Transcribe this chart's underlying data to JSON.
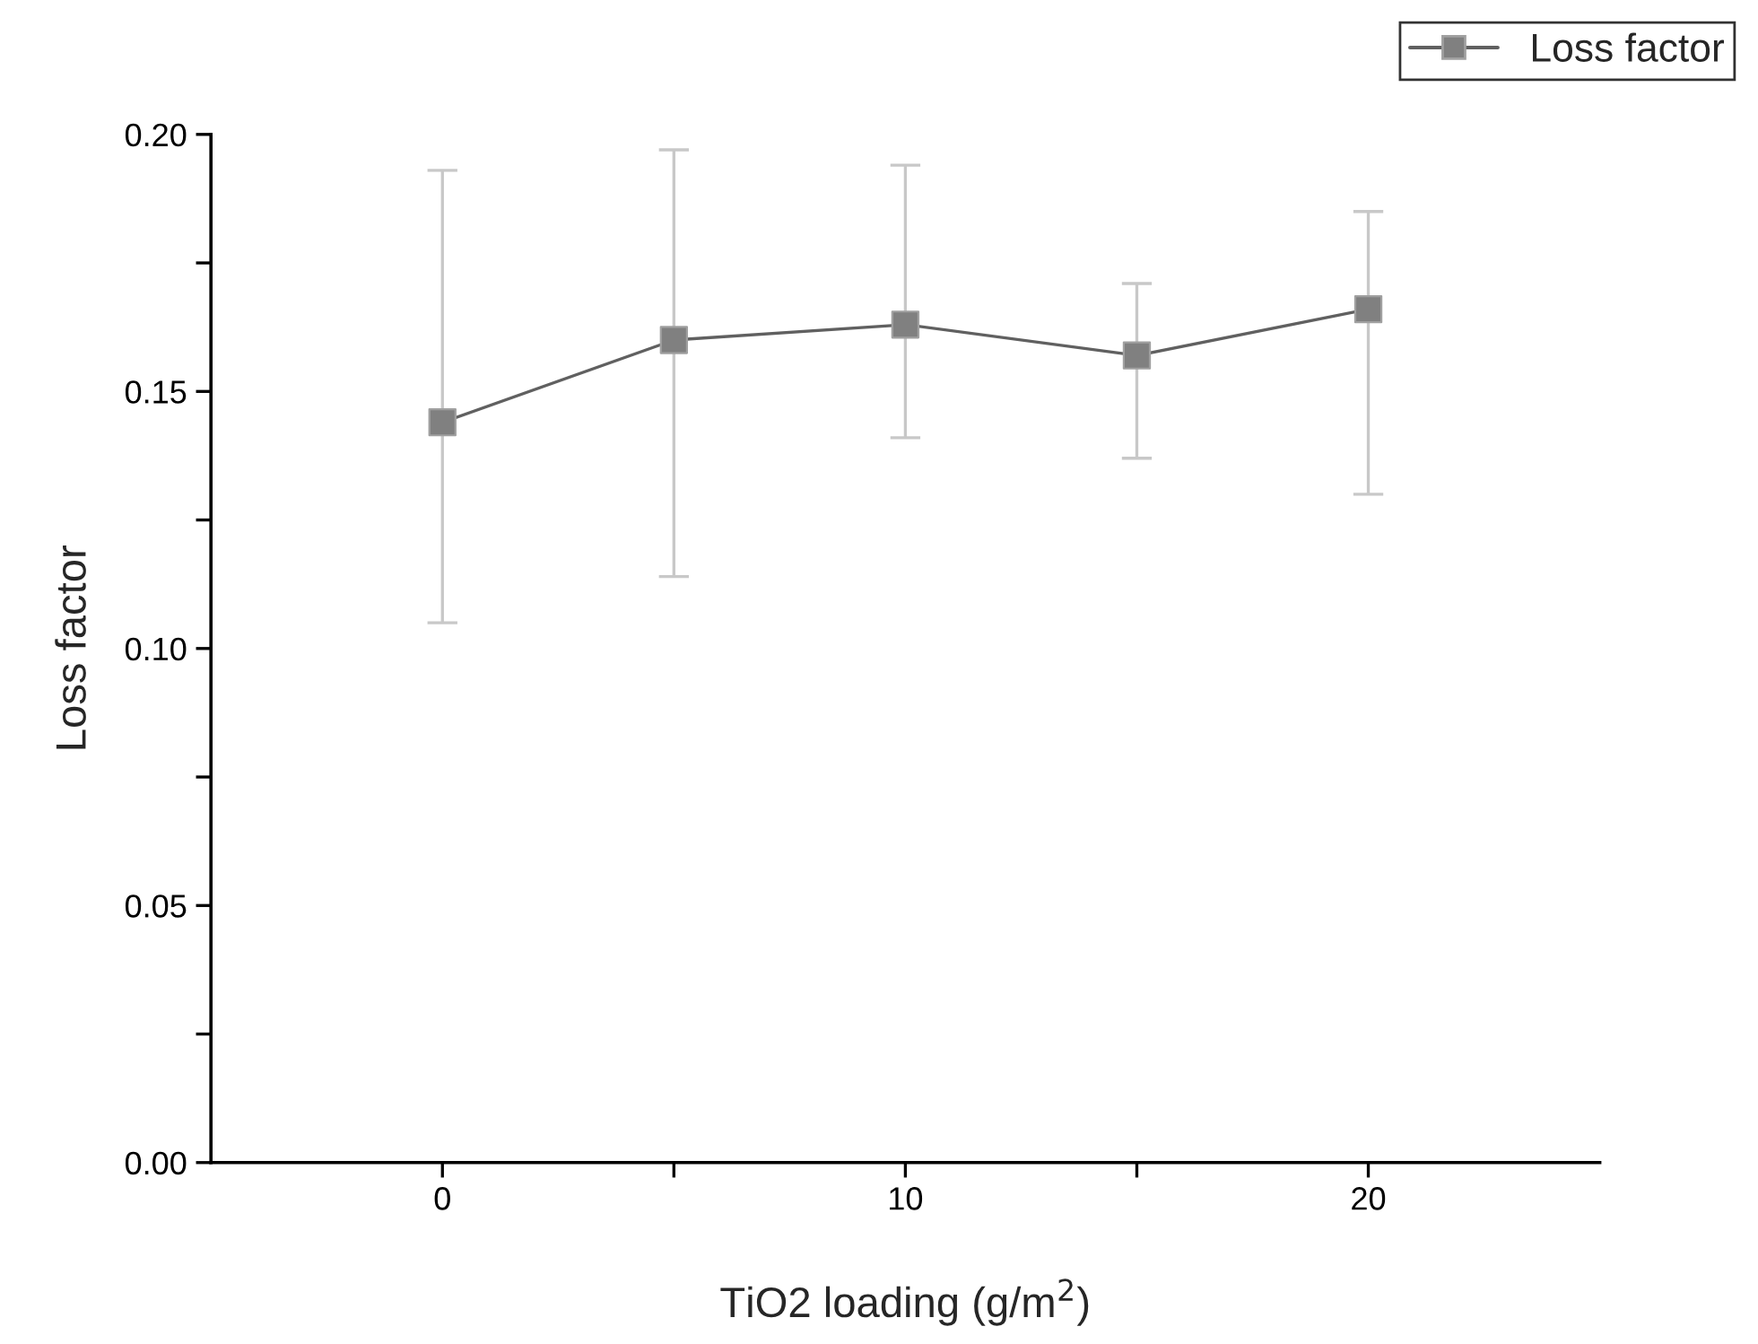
{
  "chart_data": {
    "type": "line",
    "xlabel": "TiO2 loading (g/m$^{2}$)",
    "ylabel": "Loss factor",
    "x": [
      0,
      5,
      10,
      15,
      20
    ],
    "series": [
      {
        "name": "Loss factor",
        "color": "#808080",
        "marker": "square",
        "line_style": "solid",
        "values": [
          0.144,
          0.16,
          0.163,
          0.157,
          0.166
        ],
        "errors": [
          [
            0.105,
            0.193
          ],
          [
            0.114,
            0.197
          ],
          [
            0.141,
            0.194
          ],
          [
            0.137,
            0.171
          ],
          [
            0.13,
            0.185
          ]
        ]
      }
    ],
    "xlim": [
      -5,
      25
    ],
    "xticks": [
      0,
      {
        "value": 5,
        "label": null
      },
      10,
      {
        "value": 15,
        "label": null
      },
      20
    ],
    "ylim": [
      0,
      0.2
    ],
    "yticks": [
      {
        "value": 0,
        "label": "0.00"
      },
      {
        "value": 0.025,
        "label": null
      },
      {
        "value": 0.05,
        "label": "0.05"
      },
      {
        "value": 0.075,
        "label": null
      },
      {
        "value": 0.1,
        "label": "0.10"
      },
      {
        "value": 0.125,
        "label": null
      },
      {
        "value": 0.15,
        "label": "0.15"
      },
      {
        "value": 0.175,
        "label": null
      },
      {
        "value": 0.2,
        "label": "0.20"
      }
    ],
    "grid": false,
    "legend": "top right"
  }
}
